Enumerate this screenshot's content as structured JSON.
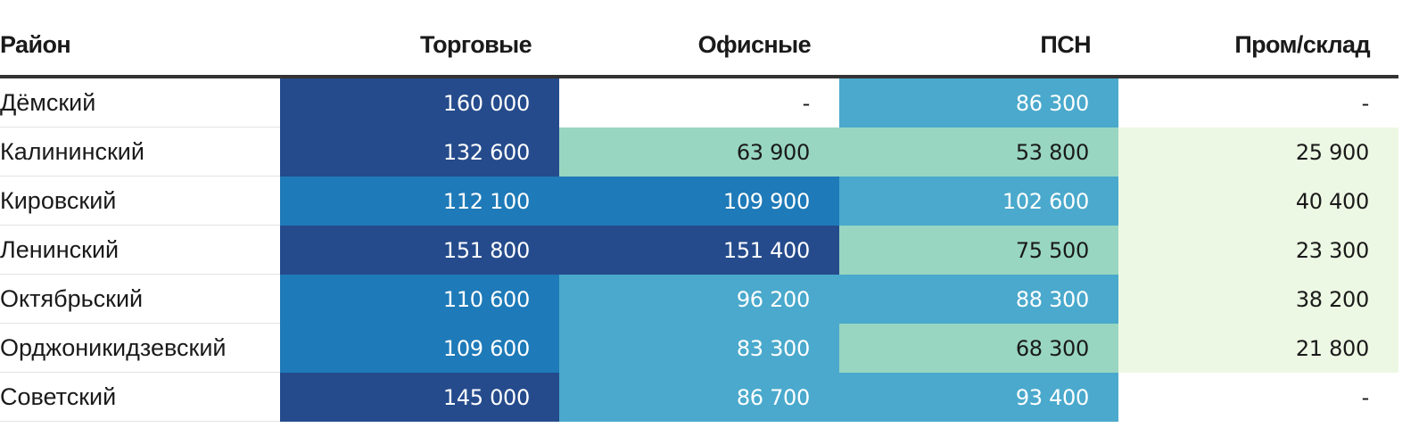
{
  "chart_data": {
    "type": "table",
    "columns": [
      "Район",
      "Торговые",
      "Офисные",
      "ПСН",
      "Пром/склад"
    ],
    "rows": [
      {
        "name": "Дёмский",
        "values": [
          "160 000",
          "-",
          "86 300",
          "-"
        ]
      },
      {
        "name": "Калининский",
        "values": [
          "132 600",
          "63 900",
          "53 800",
          "25 900"
        ]
      },
      {
        "name": "Кировский",
        "values": [
          "112 100",
          "109 900",
          "102 600",
          "40 400"
        ]
      },
      {
        "name": "Ленинский",
        "values": [
          "151 800",
          "151 400",
          "75 500",
          "23 300"
        ]
      },
      {
        "name": "Октябрьский",
        "values": [
          "110 600",
          "96 200",
          "88 300",
          "38 200"
        ]
      },
      {
        "name": "Орджоникидзевский",
        "values": [
          "109 600",
          "83 300",
          "68 300",
          "21 800"
        ]
      },
      {
        "name": "Советский",
        "values": [
          "145 000",
          "86 700",
          "93 400",
          "-"
        ]
      }
    ],
    "color_scale": [
      {
        "min": 0,
        "max": 20000,
        "fill": "#ffffff",
        "text": "#1a1a1a"
      },
      {
        "min": 20000,
        "max": 50000,
        "fill": "#edf8e4",
        "text": "#1a1a1a"
      },
      {
        "min": 50000,
        "max": 80000,
        "fill": "#98d6c1",
        "text": "#1a1a1a"
      },
      {
        "min": 80000,
        "max": 105000,
        "fill": "#4aa9cc",
        "text": "#ffffff"
      },
      {
        "min": 105000,
        "max": 130000,
        "fill": "#1e7ab8",
        "text": "#ffffff"
      },
      {
        "min": 130000,
        "max": 999999,
        "fill": "#254b8c",
        "text": "#ffffff"
      }
    ],
    "empty_fill": "#ffffff"
  }
}
